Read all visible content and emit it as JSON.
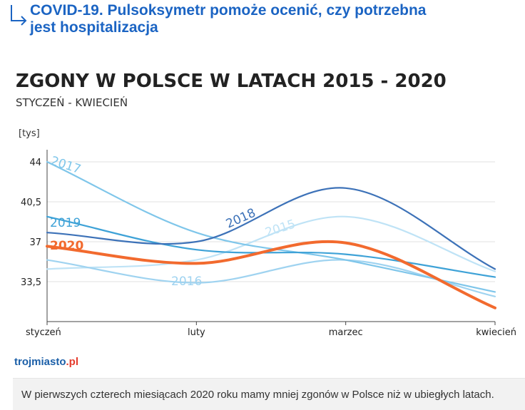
{
  "article_link": {
    "icon": "return-arrow-icon",
    "title_line1": "COVID-19. Pulsoksymetr pomoże ocenić, czy potrzebna",
    "title_line2": "jest hospitalizacja",
    "color": "#1b64c3"
  },
  "chart_data": {
    "type": "line",
    "title": "ZGONY W POLSCE W LATACH 2015 - 2020",
    "subtitle": "STYCZEŃ - KWIECIEŃ",
    "ylabel": "[tys]",
    "categories": [
      "styczeń",
      "luty",
      "marzec",
      "kwiecień"
    ],
    "yticks": [
      "44",
      "40,5",
      "37",
      "33,5"
    ],
    "ylim": [
      30,
      45
    ],
    "grid": true,
    "series": [
      {
        "name": "2017",
        "values": [
          44.0,
          37.8,
          35.4,
          32.6
        ],
        "color": "#7fc6ea",
        "label_pos": "start"
      },
      {
        "name": "2019",
        "values": [
          39.2,
          36.3,
          35.9,
          33.9
        ],
        "color": "#3ea2d7",
        "label_pos": "start"
      },
      {
        "name": "2020",
        "values": [
          36.6,
          35.1,
          36.9,
          31.2
        ],
        "color": "#f26a2e",
        "label_pos": "start"
      },
      {
        "name": "2018",
        "values": [
          37.8,
          37.0,
          41.7,
          34.6
        ],
        "color": "#3d72b8",
        "label_pos": "mid"
      },
      {
        "name": "2015",
        "values": [
          34.6,
          35.4,
          39.2,
          34.4
        ],
        "color": "#bfe3f6",
        "label_pos": "mid"
      },
      {
        "name": "2016",
        "values": [
          35.4,
          33.4,
          35.4,
          32.2
        ],
        "color": "#9fd3f0",
        "label_pos": "mid"
      }
    ]
  },
  "watermark": {
    "text": "trojmiasto.pl",
    "domain": "trojmiasto",
    "tld": ".pl"
  },
  "caption": "W pierwszych czterech miesiącach 2020 roku mamy mniej zgonów w Polsce niż w ubiegłych latach."
}
